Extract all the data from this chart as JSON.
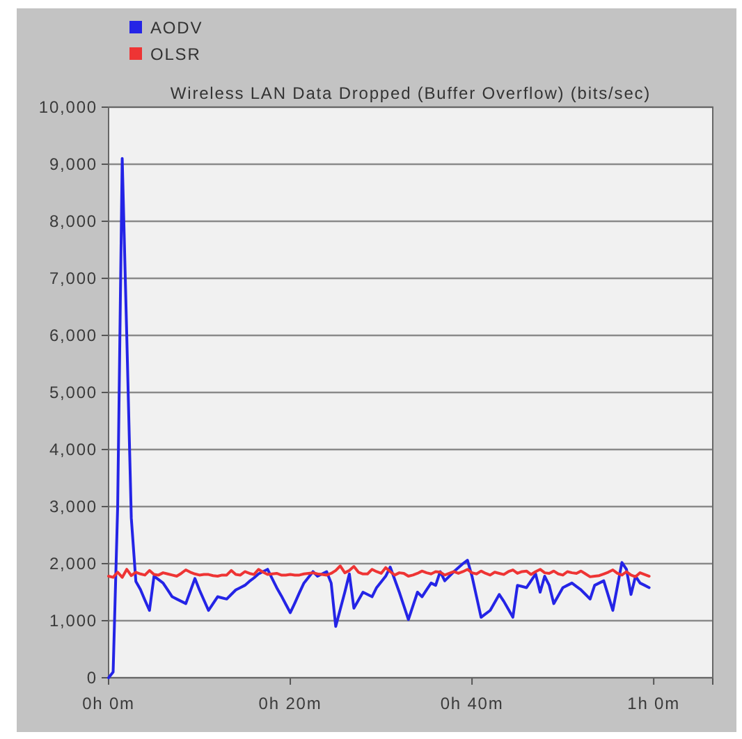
{
  "chart_data": {
    "type": "line",
    "title": "Wireless LAN Data Dropped (Buffer Overflow) (bits/sec)",
    "categories": [
      "0h 0m",
      null,
      null,
      null,
      null,
      null,
      null,
      null,
      null,
      null,
      null,
      null,
      null,
      null,
      null,
      null,
      null,
      null,
      null,
      null,
      null,
      null,
      null,
      null,
      null,
      null,
      null,
      null,
      null,
      null,
      null,
      null,
      null,
      null,
      null,
      null,
      null,
      null,
      null,
      null,
      "0h 20m",
      null,
      null,
      null,
      null,
      null,
      null,
      null,
      null,
      null,
      null,
      null,
      null,
      null,
      null,
      null,
      null,
      null,
      null,
      null,
      null,
      null,
      null,
      null,
      null,
      null,
      null,
      null,
      null,
      null,
      null,
      null,
      null,
      null,
      null,
      null,
      null,
      null,
      null,
      null,
      "0h 40m",
      null,
      null,
      null,
      null,
      null,
      null,
      null,
      null,
      null,
      null,
      null,
      null,
      null,
      null,
      null,
      null,
      null,
      null,
      null,
      null,
      null,
      null,
      null,
      null,
      null,
      null,
      null,
      null,
      null,
      null,
      null,
      null,
      null,
      null,
      null,
      null,
      null,
      null,
      null,
      "1h 0m",
      null,
      null,
      null,
      null,
      null,
      null,
      null,
      null,
      null,
      null,
      null,
      null,
      null
    ],
    "ylim": [
      0,
      10000
    ],
    "yticks": [
      {
        "value": 0,
        "label": "0"
      },
      {
        "value": 1000,
        "label": "1,000"
      },
      {
        "value": 2000,
        "label": "2,000"
      },
      {
        "value": 3000,
        "label": "3,000"
      },
      {
        "value": 4000,
        "label": "4,000"
      },
      {
        "value": 5000,
        "label": "5,000"
      },
      {
        "value": 6000,
        "label": "6,000"
      },
      {
        "value": 7000,
        "label": "7,000"
      },
      {
        "value": 8000,
        "label": "8,000"
      },
      {
        "value": 9000,
        "label": "9,000"
      },
      {
        "value": 10000,
        "label": "10,000"
      }
    ],
    "grid": "y",
    "legend": "top left",
    "marker": "none",
    "line_style": "solid",
    "series": [
      {
        "name": "AODV",
        "color": "#2424e6",
        "values": [
          0,
          100,
          3000,
          9100,
          6000,
          2800,
          1690,
          1550,
          1360,
          1180,
          1780,
          1720,
          1660,
          1540,
          1420,
          1380,
          1340,
          1300,
          1520,
          1740,
          1540,
          1360,
          1180,
          1300,
          1420,
          1400,
          1380,
          1460,
          1540,
          1580,
          1620,
          1690,
          1750,
          1820,
          1860,
          1900,
          1740,
          1580,
          1440,
          1290,
          1140,
          1310,
          1490,
          1660,
          1760,
          1860,
          1780,
          1820,
          1860,
          1660,
          900,
          1200,
          1500,
          1820,
          1220,
          1360,
          1500,
          1460,
          1420,
          1580,
          1680,
          1780,
          1940,
          1720,
          1500,
          1260,
          1020,
          1260,
          1500,
          1420,
          1540,
          1660,
          1620,
          1860,
          1700,
          1780,
          1860,
          1930,
          2000,
          2060,
          1780,
          1420,
          1060,
          1120,
          1180,
          1320,
          1460,
          1340,
          1200,
          1060,
          1620,
          1600,
          1580,
          1700,
          1820,
          1500,
          1780,
          1620,
          1300,
          1440,
          1580,
          1620,
          1660,
          1600,
          1540,
          1460,
          1380,
          1620,
          1660,
          1700,
          1440,
          1180,
          1600,
          2020,
          1900,
          1460,
          1780,
          1660,
          1620,
          1580,
          null,
          null,
          null,
          null,
          null,
          null,
          null,
          null,
          null,
          null,
          null,
          null,
          null,
          null
        ]
      },
      {
        "name": "OLSR",
        "color": "#ee3434",
        "values": [
          1780,
          1760,
          1850,
          1760,
          1900,
          1790,
          1850,
          1820,
          1800,
          1880,
          1810,
          1800,
          1840,
          1820,
          1800,
          1780,
          1830,
          1890,
          1850,
          1820,
          1800,
          1810,
          1810,
          1790,
          1780,
          1800,
          1800,
          1880,
          1810,
          1800,
          1860,
          1830,
          1810,
          1900,
          1850,
          1810,
          1820,
          1830,
          1800,
          1800,
          1810,
          1800,
          1800,
          1820,
          1830,
          1840,
          1820,
          1810,
          1800,
          1830,
          1880,
          1960,
          1840,
          1880,
          1950,
          1850,
          1820,
          1820,
          1900,
          1860,
          1830,
          1930,
          1860,
          1800,
          1840,
          1830,
          1780,
          1800,
          1830,
          1870,
          1840,
          1820,
          1860,
          1850,
          1800,
          1830,
          1860,
          1830,
          1860,
          1900,
          1840,
          1820,
          1870,
          1830,
          1800,
          1850,
          1830,
          1810,
          1860,
          1890,
          1830,
          1860,
          1870,
          1810,
          1860,
          1900,
          1840,
          1830,
          1870,
          1820,
          1800,
          1860,
          1840,
          1830,
          1870,
          1820,
          1770,
          1780,
          1790,
          1820,
          1850,
          1890,
          1830,
          1800,
          1860,
          1800,
          1770,
          1840,
          1810,
          1780,
          null,
          null,
          null,
          null,
          null,
          null,
          null,
          null,
          null,
          null,
          null,
          null,
          null,
          null
        ]
      }
    ]
  }
}
